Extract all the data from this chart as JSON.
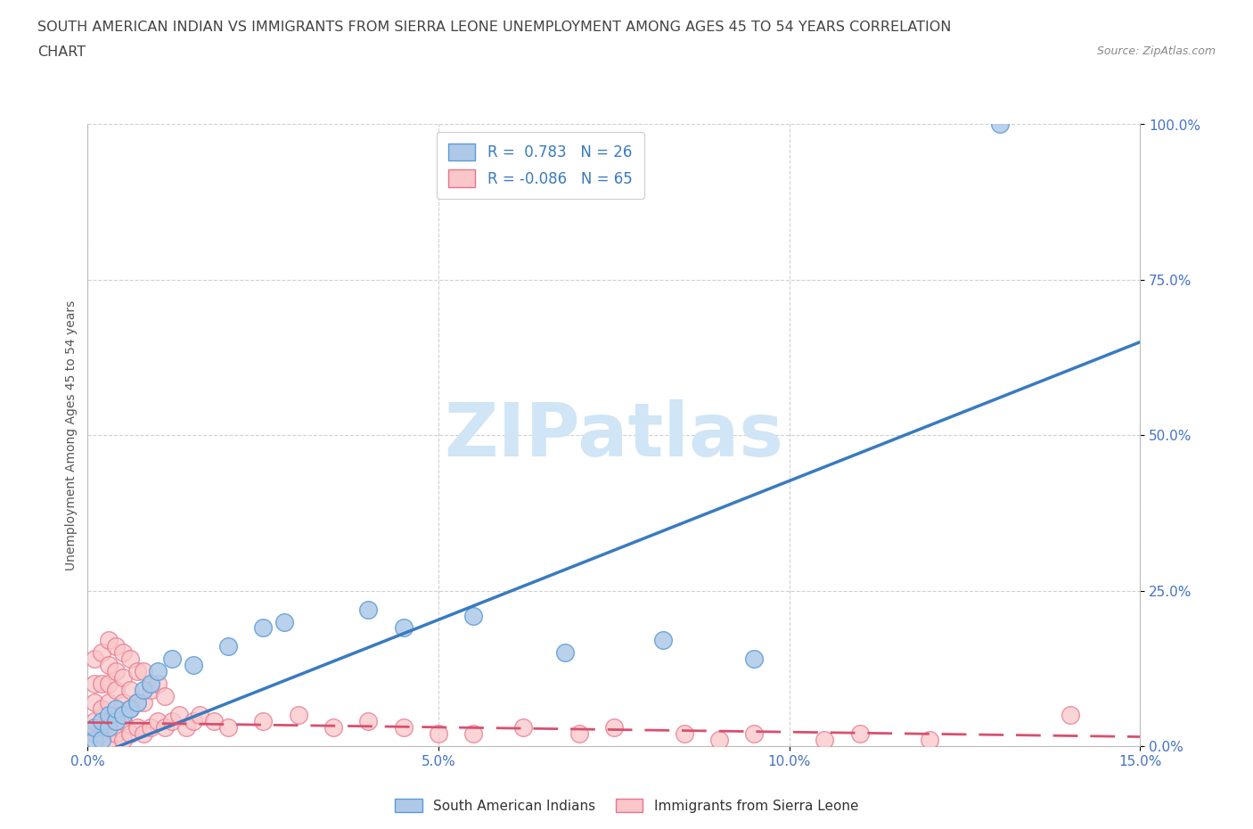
{
  "title_line1": "SOUTH AMERICAN INDIAN VS IMMIGRANTS FROM SIERRA LEONE UNEMPLOYMENT AMONG AGES 45 TO 54 YEARS CORRELATION",
  "title_line2": "CHART",
  "source": "Source: ZipAtlas.com",
  "ylabel": "Unemployment Among Ages 45 to 54 years",
  "xmin": 0.0,
  "xmax": 0.15,
  "ymin": 0.0,
  "ymax": 1.0,
  "xticks": [
    0.0,
    0.05,
    0.1,
    0.15
  ],
  "xticklabels": [
    "0.0%",
    "5.0%",
    "10.0%",
    "15.0%"
  ],
  "yticks": [
    0.0,
    0.25,
    0.5,
    0.75,
    1.0
  ],
  "yticklabels": [
    "0.0%",
    "25.0%",
    "50.0%",
    "75.0%",
    "100.0%"
  ],
  "blue_color": "#aec9e8",
  "blue_edge": "#5b9bd5",
  "pink_color": "#f9c6c9",
  "pink_edge": "#e8748a",
  "blue_line_color": "#3a7abf",
  "pink_line_color": "#d94f6e",
  "R_blue": 0.783,
  "N_blue": 26,
  "R_pink": -0.086,
  "N_pink": 65,
  "legend_label_blue": "South American Indians",
  "legend_label_pink": "Immigrants from Sierra Leone",
  "watermark": "ZIPatlas",
  "watermark_color": "#d0e5f5",
  "blue_line_x0": 0.0,
  "blue_line_y0": -0.02,
  "blue_line_x1": 0.15,
  "blue_line_y1": 0.65,
  "pink_line_x0": 0.0,
  "pink_line_y0": 0.038,
  "pink_line_x1": 0.15,
  "pink_line_y1": 0.015,
  "blue_scatter_x": [
    0.001,
    0.001,
    0.002,
    0.002,
    0.003,
    0.003,
    0.004,
    0.004,
    0.005,
    0.006,
    0.007,
    0.008,
    0.009,
    0.01,
    0.012,
    0.015,
    0.02,
    0.025,
    0.028,
    0.04,
    0.045,
    0.055,
    0.068,
    0.082,
    0.095,
    0.13
  ],
  "blue_scatter_y": [
    0.01,
    0.03,
    0.01,
    0.04,
    0.03,
    0.05,
    0.04,
    0.06,
    0.05,
    0.06,
    0.07,
    0.09,
    0.1,
    0.12,
    0.14,
    0.13,
    0.16,
    0.19,
    0.2,
    0.22,
    0.19,
    0.21,
    0.15,
    0.17,
    0.14,
    1.0
  ],
  "pink_scatter_x": [
    0.001,
    0.001,
    0.001,
    0.001,
    0.001,
    0.002,
    0.002,
    0.002,
    0.002,
    0.003,
    0.003,
    0.003,
    0.003,
    0.003,
    0.003,
    0.004,
    0.004,
    0.004,
    0.004,
    0.004,
    0.005,
    0.005,
    0.005,
    0.005,
    0.005,
    0.006,
    0.006,
    0.006,
    0.006,
    0.007,
    0.007,
    0.007,
    0.008,
    0.008,
    0.008,
    0.009,
    0.009,
    0.01,
    0.01,
    0.011,
    0.011,
    0.012,
    0.013,
    0.014,
    0.015,
    0.016,
    0.018,
    0.02,
    0.025,
    0.03,
    0.035,
    0.04,
    0.045,
    0.05,
    0.055,
    0.062,
    0.07,
    0.075,
    0.085,
    0.09,
    0.095,
    0.105,
    0.11,
    0.12,
    0.14
  ],
  "pink_scatter_y": [
    0.02,
    0.04,
    0.07,
    0.1,
    0.14,
    0.02,
    0.06,
    0.1,
    0.15,
    0.01,
    0.04,
    0.07,
    0.1,
    0.13,
    0.17,
    0.02,
    0.05,
    0.09,
    0.12,
    0.16,
    0.01,
    0.04,
    0.07,
    0.11,
    0.15,
    0.02,
    0.06,
    0.09,
    0.14,
    0.03,
    0.07,
    0.12,
    0.02,
    0.07,
    0.12,
    0.03,
    0.09,
    0.04,
    0.1,
    0.03,
    0.08,
    0.04,
    0.05,
    0.03,
    0.04,
    0.05,
    0.04,
    0.03,
    0.04,
    0.05,
    0.03,
    0.04,
    0.03,
    0.02,
    0.02,
    0.03,
    0.02,
    0.03,
    0.02,
    0.01,
    0.02,
    0.01,
    0.02,
    0.01,
    0.05
  ],
  "background_color": "#ffffff",
  "grid_color": "#cccccc",
  "tick_color": "#4472c4",
  "title_color": "#444444",
  "source_color": "#888888"
}
